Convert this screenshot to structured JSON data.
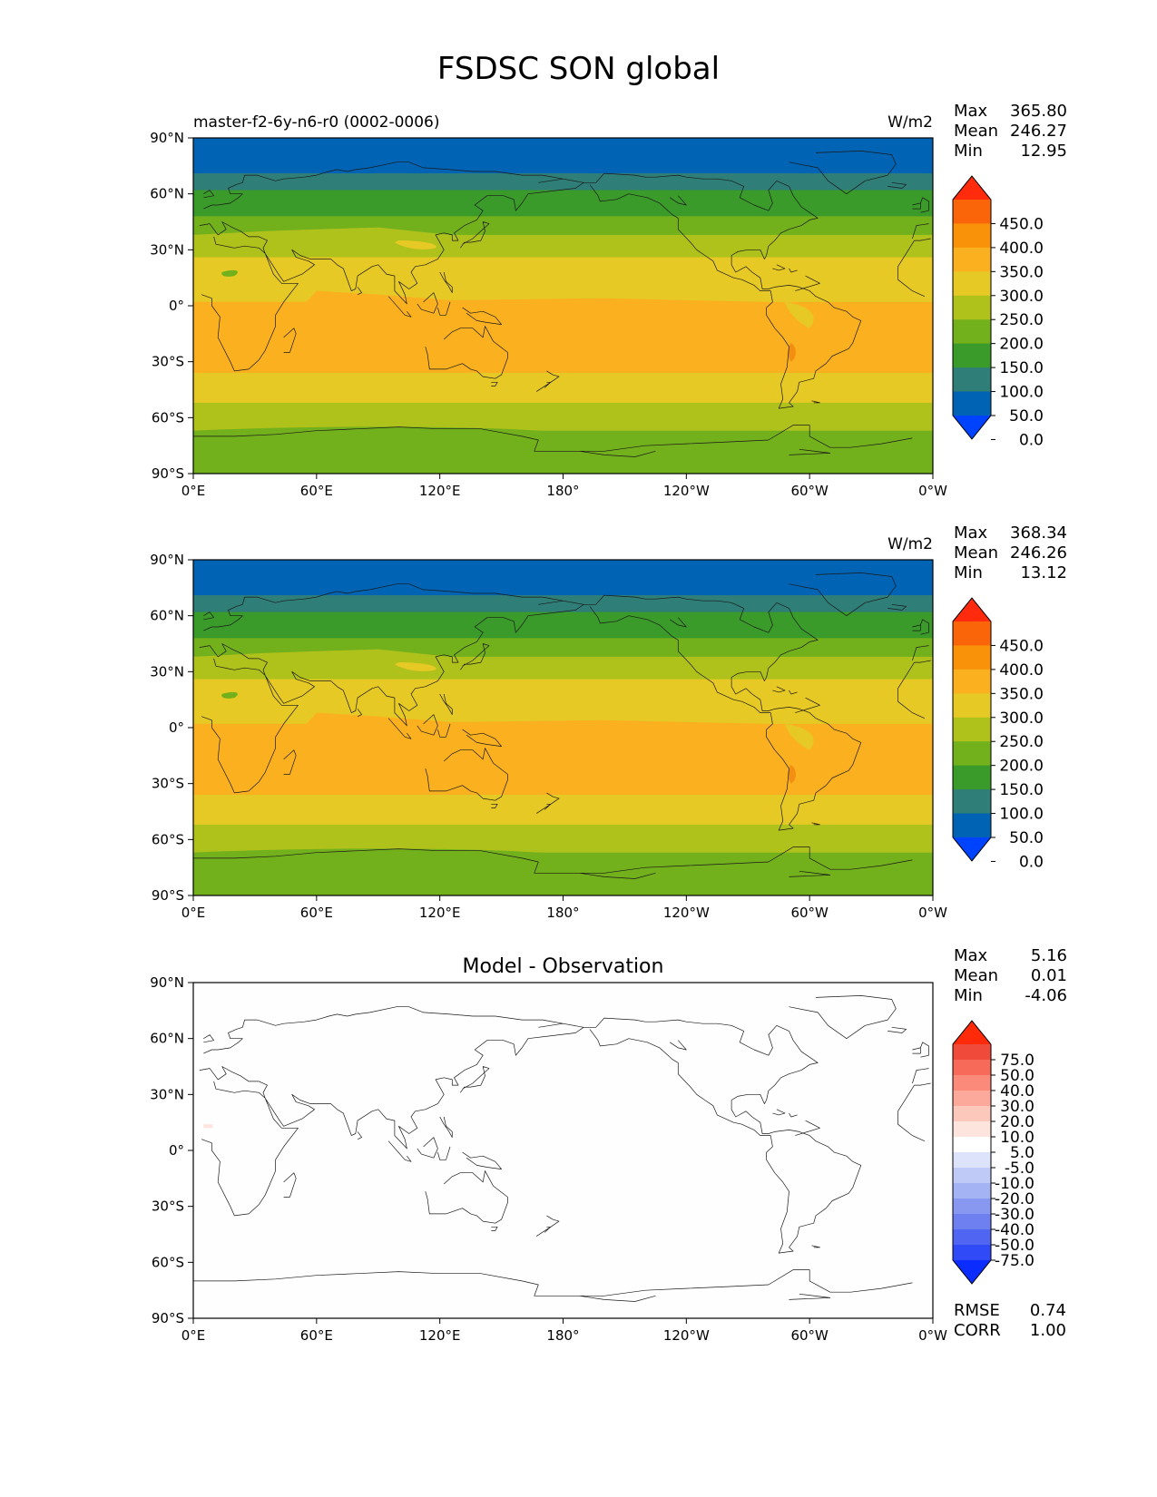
{
  "title": "FSDSC SON global",
  "xticks": [
    "0°E",
    "60°E",
    "120°E",
    "180°",
    "120°W",
    "60°W",
    "0°W"
  ],
  "yticks": [
    "90°N",
    "60°N",
    "30°N",
    "0°",
    "30°S",
    "60°S",
    "90°S"
  ],
  "panels": [
    {
      "left_title": "master-f2-6y-n6-r0 (0002-0006)",
      "center_title": "",
      "units": "W/m2",
      "stats": [
        {
          "label": "Max",
          "value": "365.80"
        },
        {
          "label": "Mean",
          "value": "246.27"
        },
        {
          "label": "Min",
          "value": "12.95"
        }
      ],
      "colorbar_labels": [
        "450.0",
        "400.0",
        "350.0",
        "300.0",
        "250.0",
        "200.0",
        "150.0",
        "100.0",
        "50.0",
        "0.0"
      ],
      "extra_stats": []
    },
    {
      "left_title": "",
      "center_title": "",
      "units": "W/m2",
      "stats": [
        {
          "label": "Max",
          "value": "368.34"
        },
        {
          "label": "Mean",
          "value": "246.26"
        },
        {
          "label": "Min",
          "value": "13.12"
        }
      ],
      "colorbar_labels": [
        "450.0",
        "400.0",
        "350.0",
        "300.0",
        "250.0",
        "200.0",
        "150.0",
        "100.0",
        "50.0",
        "0.0"
      ],
      "extra_stats": []
    },
    {
      "left_title": "",
      "center_title": "Model - Observation",
      "units": "",
      "stats": [
        {
          "label": "Max",
          "value": "5.16"
        },
        {
          "label": "Mean",
          "value": "0.01"
        },
        {
          "label": "Min",
          "value": "-4.06"
        }
      ],
      "colorbar_labels": [
        "75.0",
        "50.0",
        "40.0",
        "30.0",
        "20.0",
        "10.0",
        "5.0",
        "-5.0",
        "-10.0",
        "-20.0",
        "-30.0",
        "-40.0",
        "-50.0",
        "-75.0"
      ],
      "extra_stats": [
        {
          "label": "RMSE",
          "value": "0.74"
        },
        {
          "label": "CORR",
          "value": "1.00"
        }
      ]
    }
  ],
  "colors": {
    "field_bands": [
      "#0063b4",
      "#2f7f78",
      "#3a9a2a",
      "#72b01c",
      "#afc11b",
      "#e6c924",
      "#fbb11f",
      "#f28e11",
      "#fb6509",
      "#ff2b0c",
      "#0043ff"
    ],
    "field_cbar": [
      "#ff2b0c",
      "#fb6509",
      "#f99208",
      "#fbb11f",
      "#e6c924",
      "#afc11b",
      "#72b01c",
      "#3a9a2a",
      "#2f7f78",
      "#0063b4",
      "#0043ff"
    ],
    "diff_cbar": [
      "#ff2a0a",
      "#f04a3a",
      "#f76a5a",
      "#fb8a7a",
      "#fca89a",
      "#fdc8bc",
      "#fde4dc",
      "#ffffff",
      "#dde3fb",
      "#bfcaf6",
      "#a3b3f3",
      "#8898f0",
      "#6e7ff0",
      "#5066f2",
      "#2f4af6",
      "#0a2cff"
    ]
  }
}
